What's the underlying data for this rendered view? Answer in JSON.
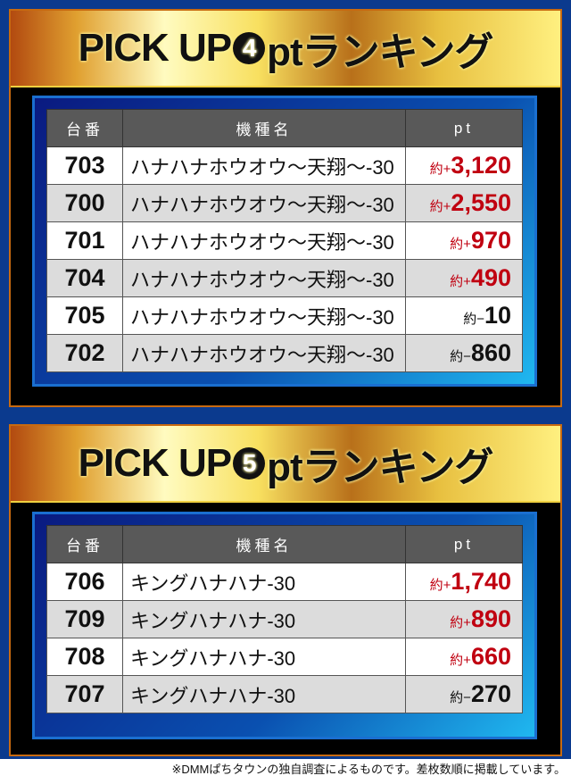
{
  "sections": [
    {
      "title_prefix": "PICK UP",
      "title_number": "4",
      "title_suffix": "ptランキング",
      "headers": [
        "台番",
        "機種名",
        "pt"
      ],
      "rows": [
        {
          "no": "703",
          "name": "ハナハナホウオウ～天翔～-30",
          "prefix": "約+",
          "value": "3,120",
          "sign": "pos"
        },
        {
          "no": "700",
          "name": "ハナハナホウオウ～天翔～-30",
          "prefix": "約+",
          "value": "2,550",
          "sign": "pos"
        },
        {
          "no": "701",
          "name": "ハナハナホウオウ～天翔～-30",
          "prefix": "約+",
          "value": "970",
          "sign": "pos"
        },
        {
          "no": "704",
          "name": "ハナハナホウオウ～天翔～-30",
          "prefix": "約+",
          "value": "490",
          "sign": "pos"
        },
        {
          "no": "705",
          "name": "ハナハナホウオウ～天翔～-30",
          "prefix": "約−",
          "value": "10",
          "sign": "neg"
        },
        {
          "no": "702",
          "name": "ハナハナホウオウ～天翔～-30",
          "prefix": "約−",
          "value": "860",
          "sign": "neg"
        }
      ]
    },
    {
      "title_prefix": "PICK UP",
      "title_number": "5",
      "title_suffix": "ptランキング",
      "headers": [
        "台番",
        "機種名",
        "pt"
      ],
      "rows": [
        {
          "no": "706",
          "name": "キングハナハナ-30",
          "prefix": "約+",
          "value": "1,740",
          "sign": "pos"
        },
        {
          "no": "709",
          "name": "キングハナハナ-30",
          "prefix": "約+",
          "value": "890",
          "sign": "pos"
        },
        {
          "no": "708",
          "name": "キングハナハナ-30",
          "prefix": "約+",
          "value": "660",
          "sign": "pos"
        },
        {
          "no": "707",
          "name": "キングハナハナ-30",
          "prefix": "約−",
          "value": "270",
          "sign": "neg"
        }
      ]
    }
  ],
  "colors": {
    "positive": "#c00010",
    "negative": "#111111",
    "background": "#0b3a8e"
  },
  "footnote": "※DMMぱちタウンの独自調査によるものです。差枚数順に掲載しています。"
}
